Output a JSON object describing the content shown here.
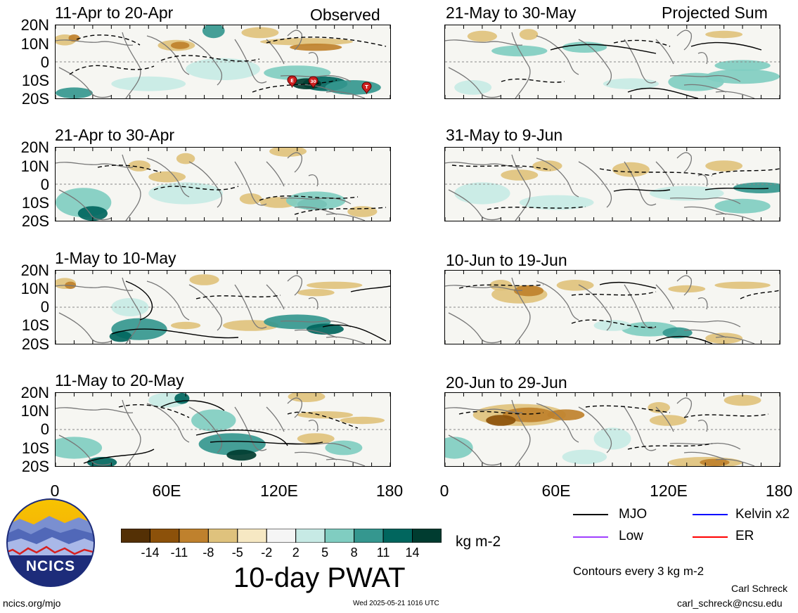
{
  "header": {
    "observed": "Observed",
    "projected": "Projected Sum"
  },
  "panels": [
    {
      "key": "p1",
      "title": "11-Apr to 20-Apr",
      "column": "observed"
    },
    {
      "key": "p2",
      "title": "21-Apr to 30-Apr",
      "column": "observed"
    },
    {
      "key": "p3",
      "title": "1-May to 10-May",
      "column": "observed"
    },
    {
      "key": "p4",
      "title": "11-May to 20-May",
      "column": "observed"
    },
    {
      "key": "p5",
      "title": "21-May to 30-May",
      "column": "projected"
    },
    {
      "key": "p6",
      "title": "31-May to 9-Jun",
      "column": "projected"
    },
    {
      "key": "p7",
      "title": "10-Jun to 19-Jun",
      "column": "projected"
    },
    {
      "key": "p8",
      "title": "20-Jun to 29-Jun",
      "column": "projected"
    }
  ],
  "lat_labels": [
    "20N",
    "10N",
    "0",
    "10S",
    "20S"
  ],
  "lon_labels": [
    "0",
    "60E",
    "120E",
    "180"
  ],
  "markers": [
    "E",
    "30",
    "T"
  ],
  "colorbar": {
    "ticks": [
      "-14",
      "-11",
      "-8",
      "-5",
      "-2",
      "2",
      "5",
      "8",
      "11",
      "14"
    ],
    "colors": [
      "#543005",
      "#8c510a",
      "#bf812d",
      "#dfc27d",
      "#f6e8c3",
      "#f5f5f5",
      "#c7eae5",
      "#80cdc1",
      "#35978f",
      "#01665e",
      "#003c30"
    ],
    "units": "kg m-2",
    "title": "10-day PWAT"
  },
  "legend": {
    "items": [
      {
        "label": "MJO",
        "color": "#000000"
      },
      {
        "label": "Kelvin x2",
        "color": "#0000ff"
      },
      {
        "label": "Low",
        "color": "#a040ff"
      },
      {
        "label": "ER",
        "color": "#ff0000"
      }
    ],
    "contours_note": "Contours every 3 kg m-2"
  },
  "logo": {
    "text": "NCICS"
  },
  "footer": {
    "url": "ncics.org/mjo",
    "timestamp": "Wed 2025-05-21 1016 UTC",
    "author": "Carl Schreck",
    "email": "carl_schreck@ncsu.edu"
  }
}
